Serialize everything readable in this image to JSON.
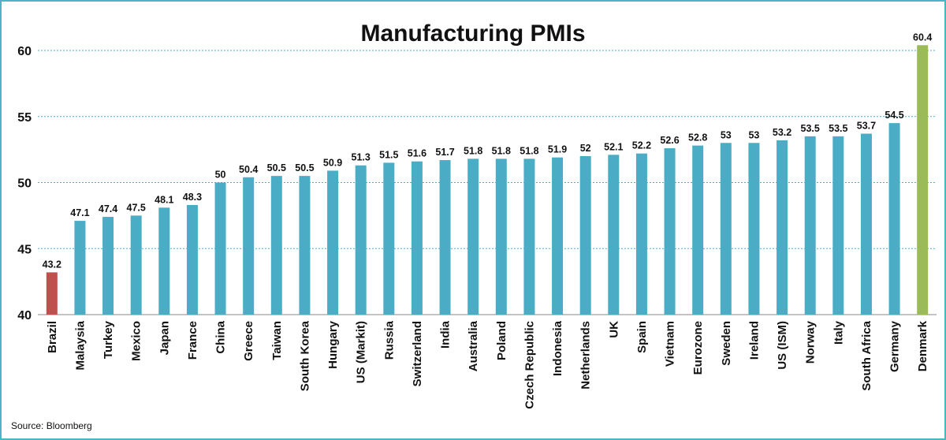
{
  "chart_data": {
    "type": "bar",
    "title": "Manufacturing PMIs",
    "xlabel": "",
    "ylabel": "",
    "ylim": [
      40,
      61.5
    ],
    "yticks": [
      40,
      45,
      50,
      55,
      60
    ],
    "grid": true,
    "categories": [
      "Brazil",
      "Malaysia",
      "Turkey",
      "Mexico",
      "Japan",
      "France",
      "China",
      "Greece",
      "Taiwan",
      "South Korea",
      "Hungary",
      "US (Markit)",
      "Russia",
      "Switzerland",
      "India",
      "Australia",
      "Poland",
      "Czech Republic",
      "Indonesia",
      "Netherlands",
      "UK",
      "Spain",
      "Vietnam",
      "Eurozone",
      "Sweden",
      "Ireland",
      "US (ISM)",
      "Norway",
      "Italy",
      "South Africa",
      "Germany",
      "Denmark"
    ],
    "values": [
      43.2,
      47.1,
      47.4,
      47.5,
      48.1,
      48.3,
      50,
      50.4,
      50.5,
      50.5,
      50.9,
      51.3,
      51.5,
      51.6,
      51.7,
      51.8,
      51.8,
      51.8,
      51.9,
      52,
      52.1,
      52.2,
      52.6,
      52.8,
      53,
      53,
      53.2,
      53.5,
      53.5,
      53.7,
      54.5,
      60.4
    ],
    "data_labels": [
      "43.2",
      "47.1",
      "47.4",
      "47.5",
      "48.1",
      "48.3",
      "50",
      "50.4",
      "50.5",
      "50.5",
      "50.9",
      "51.3",
      "51.5",
      "51.6",
      "51.7",
      "51.8",
      "51.8",
      "51.8",
      "51.9",
      "52",
      "52.1",
      "52.2",
      "52.6",
      "52.8",
      "53",
      "53",
      "53.2",
      "53.5",
      "53.5",
      "53.7",
      "54.5",
      "60.4"
    ],
    "colors": {
      "default": "#4bacc6",
      "lowest": "#c0504d",
      "highest": "#9bbb59",
      "grid": "#4bacc6"
    }
  },
  "source": "Source: Bloomberg"
}
